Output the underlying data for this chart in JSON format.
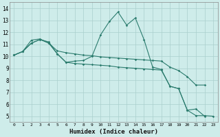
{
  "xlabel": "Humidex (Indice chaleur)",
  "xlim": [
    -0.5,
    23.5
  ],
  "ylim": [
    4.5,
    14.5
  ],
  "xticks": [
    0,
    1,
    2,
    3,
    4,
    5,
    6,
    7,
    8,
    9,
    10,
    11,
    12,
    13,
    14,
    15,
    16,
    17,
    18,
    19,
    20,
    21,
    22,
    23
  ],
  "yticks": [
    5,
    6,
    7,
    8,
    9,
    10,
    11,
    12,
    13,
    14
  ],
  "line_color": "#2a7b6d",
  "bg_color": "#ceecea",
  "grid_color": "#aacfcc",
  "line1_x": [
    0,
    1,
    2,
    3,
    4,
    5,
    6,
    7,
    8,
    9,
    10,
    11,
    12,
    13,
    14,
    15,
    16,
    17,
    18,
    19,
    20,
    21,
    22
  ],
  "line1_y": [
    10.1,
    10.4,
    11.1,
    11.4,
    11.2,
    10.2,
    9.5,
    9.6,
    9.65,
    10.0,
    11.8,
    12.9,
    13.7,
    12.6,
    13.2,
    11.4,
    9.1,
    8.9,
    7.5,
    7.3,
    5.5,
    5.6,
    5.0
  ],
  "line2_x": [
    0,
    1,
    2,
    3,
    4,
    5,
    6,
    7,
    8,
    9,
    10,
    11,
    12,
    13,
    14,
    15,
    16,
    17,
    18,
    19,
    20,
    21,
    22
  ],
  "line2_y": [
    10.1,
    10.4,
    11.35,
    11.45,
    11.1,
    10.45,
    10.3,
    10.2,
    10.1,
    10.05,
    9.95,
    9.9,
    9.85,
    9.8,
    9.75,
    9.7,
    9.65,
    9.6,
    9.1,
    8.8,
    8.3,
    7.6,
    7.6
  ],
  "line3_x": [
    0,
    1,
    2,
    3,
    4,
    5,
    6,
    7,
    8,
    9,
    10,
    11,
    12,
    13,
    14,
    15,
    16,
    17,
    18,
    19,
    20,
    21,
    22,
    23
  ],
  "line3_y": [
    10.1,
    10.4,
    11.1,
    11.4,
    11.1,
    10.2,
    9.5,
    9.4,
    9.35,
    9.3,
    9.25,
    9.2,
    9.1,
    9.05,
    9.0,
    8.95,
    8.9,
    8.85,
    7.5,
    7.3,
    5.5,
    5.05,
    5.05,
    5.0
  ]
}
